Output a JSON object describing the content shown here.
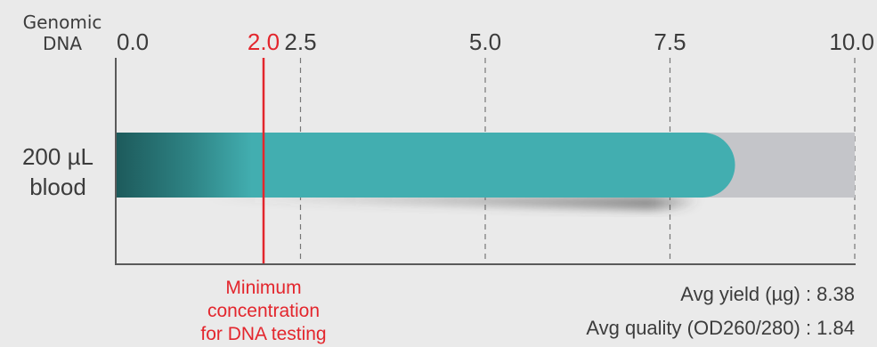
{
  "chart_data": {
    "type": "bar",
    "corner_label": [
      "Genomic",
      "DNA"
    ],
    "categories": [
      [
        "200 µL",
        "blood"
      ]
    ],
    "values": [
      8.38
    ],
    "xlim": [
      0,
      10
    ],
    "x_ticks": [
      {
        "value": 0,
        "label": "0.0"
      },
      {
        "value": 2.5,
        "label": "2.5"
      },
      {
        "value": 5,
        "label": "5.0"
      },
      {
        "value": 7.5,
        "label": "7.5"
      },
      {
        "value": 10,
        "label": "10.0"
      }
    ],
    "threshold": {
      "value": 2.0,
      "label": "2.0",
      "annotation": [
        "Minimum",
        "concentration",
        "for DNA testing"
      ]
    },
    "stats": [
      "Avg yield (µg) : 8.38",
      "Avg quality (OD260/280) : 1.84"
    ],
    "grid": "vertical dashed"
  },
  "colors": {
    "background": "#eaeaea",
    "bar": "#42aeb0",
    "bar_dark": "#1d5a5b",
    "track": "#c4c5c9",
    "threshold": "#e3262d",
    "axis": "#5a5a5a",
    "grid": "#777777",
    "text": "#3c3c3c"
  }
}
